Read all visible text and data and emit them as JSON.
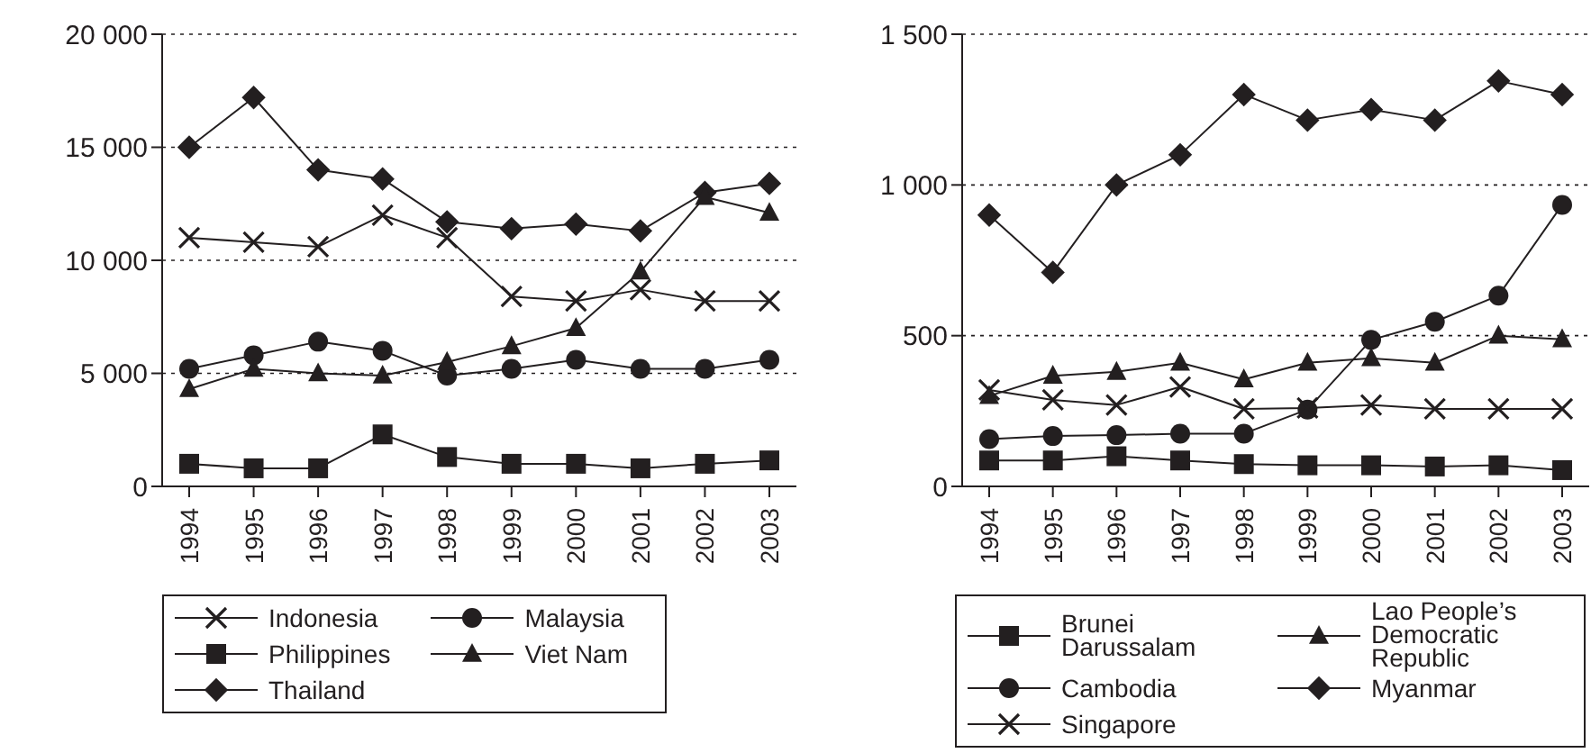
{
  "chart_data": [
    {
      "type": "line",
      "categories": [
        "1994",
        "1995",
        "1996",
        "1997",
        "1998",
        "1999",
        "2000",
        "2001",
        "2002",
        "2003"
      ],
      "ylim": [
        0,
        20000
      ],
      "yticks": [
        {
          "value": 0,
          "label": "0"
        },
        {
          "value": 5000,
          "label": "5 000"
        },
        {
          "value": 10000,
          "label": "10 000"
        },
        {
          "value": 15000,
          "label": "15 000"
        },
        {
          "value": 20000,
          "label": "20 000"
        }
      ],
      "grid": "y",
      "legend": "bottom",
      "series": [
        {
          "name": "Indonesia",
          "color": "#231f20",
          "marker": "cross",
          "values": [
            11000,
            10800,
            10600,
            12000,
            11000,
            8400,
            8200,
            8700,
            8200,
            8200
          ]
        },
        {
          "name": "Philippines",
          "color": "#231f20",
          "marker": "square",
          "values": [
            1000,
            800,
            800,
            2300,
            1300,
            1000,
            1000,
            800,
            1000,
            1150
          ]
        },
        {
          "name": "Thailand",
          "color": "#231f20",
          "marker": "diamond",
          "values": [
            15000,
            17200,
            14000,
            13600,
            11700,
            11400,
            11600,
            11300,
            13000,
            13400
          ]
        },
        {
          "name": "Malaysia",
          "color": "#231f20",
          "marker": "circle",
          "values": [
            5200,
            5800,
            6400,
            6000,
            4900,
            5200,
            5600,
            5200,
            5200,
            5600
          ]
        },
        {
          "name": "Viet Nam",
          "color": "#231f20",
          "marker": "triangle",
          "values": [
            4300,
            5200,
            5000,
            4900,
            5500,
            6200,
            7000,
            9500,
            12800,
            12100
          ]
        }
      ]
    },
    {
      "type": "line",
      "categories": [
        "1994",
        "1995",
        "1996",
        "1997",
        "1998",
        "1999",
        "2000",
        "2001",
        "2002",
        "2003"
      ],
      "ylim": [
        0,
        1500
      ],
      "yticks": [
        {
          "value": 0,
          "label": "0"
        },
        {
          "value": 500,
          "label": "500"
        },
        {
          "value": 1000,
          "label": "1 000"
        },
        {
          "value": 1500,
          "label": "1 500"
        }
      ],
      "grid": "y",
      "legend": "bottom",
      "series": [
        {
          "name": "Brunei Darussalam",
          "color": "#231f20",
          "marker": "square",
          "values": [
            86,
            86,
            100,
            86,
            74,
            70,
            70,
            66,
            70,
            54
          ]
        },
        {
          "name": "Cambodia",
          "color": "#231f20",
          "marker": "circle",
          "values": [
            157,
            167,
            170,
            175,
            175,
            255,
            486,
            546,
            633,
            934
          ]
        },
        {
          "name": "Singapore",
          "color": "#231f20",
          "marker": "cross",
          "values": [
            320,
            287,
            270,
            330,
            257,
            260,
            270,
            257,
            257,
            257
          ]
        },
        {
          "name": "Lao People’s Democratic Republic",
          "color": "#231f20",
          "marker": "triangle",
          "values": [
            300,
            367,
            380,
            410,
            355,
            410,
            425,
            410,
            500,
            488
          ]
        },
        {
          "name": "Myanmar",
          "color": "#231f20",
          "marker": "diamond",
          "values": [
            900,
            710,
            1000,
            1100,
            1300,
            1215,
            1250,
            1215,
            1345,
            1300
          ]
        }
      ]
    }
  ]
}
